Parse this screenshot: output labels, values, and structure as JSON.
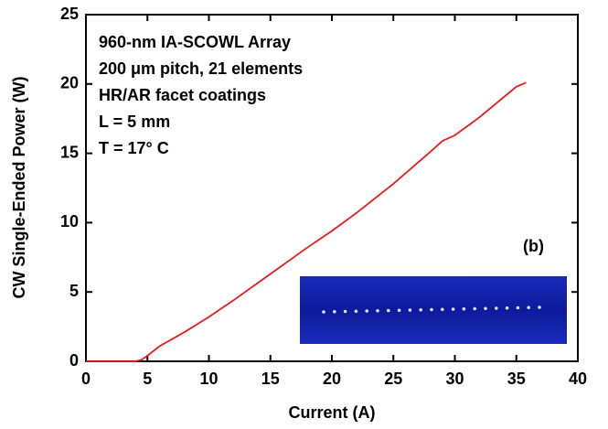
{
  "chart_data": {
    "type": "line",
    "xlabel": "Current (A)",
    "ylabel": "CW Single-Ended Power (W)",
    "annotations": [
      "960-nm IA-SCOWL Array",
      "200 μm pitch, 21 elements",
      "HR/AR facet coatings",
      "L = 5 mm",
      "T = 17° C"
    ],
    "inset_label": "(b)",
    "color": "#e8191c",
    "x": [
      0,
      4,
      4.5,
      5,
      6,
      8,
      10,
      12,
      15,
      18,
      20,
      22,
      25,
      28,
      29,
      30,
      32,
      35,
      35.8
    ],
    "values": [
      0,
      0,
      0.1,
      0.4,
      1.1,
      2.1,
      3.2,
      4.4,
      6.3,
      8.2,
      9.4,
      10.7,
      12.8,
      15.1,
      15.9,
      16.3,
      17.6,
      19.8,
      20.1
    ],
    "xlim": [
      0,
      40
    ],
    "xticks": [
      0,
      5,
      10,
      15,
      20,
      25,
      30,
      35,
      40
    ],
    "ylim": [
      0,
      25
    ],
    "yticks": [
      0,
      5,
      10,
      15,
      20,
      25
    ]
  }
}
